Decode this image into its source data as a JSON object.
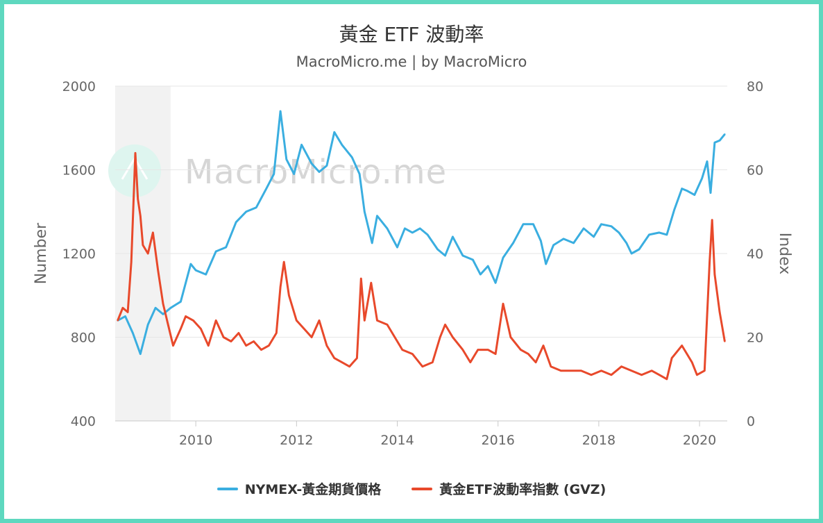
{
  "title": "黃金 ETF 波動率",
  "subtitle": "MacroMicro.me | by MacroMicro",
  "watermark": "MacroMicro.me",
  "colors": {
    "gold": "#3aaee0",
    "gvz": "#e8492b",
    "band": "#f2f2f2",
    "border": "#5ed8bf"
  },
  "chart_data": {
    "type": "line",
    "xlim": [
      2008.4,
      2020.55
    ],
    "x_ticks": [
      "2010",
      "2012",
      "2014",
      "2016",
      "2018",
      "2020"
    ],
    "y_left": {
      "label": "Number",
      "ylim": [
        400,
        2000
      ],
      "ticks": [
        "400",
        "800",
        "1200",
        "1600",
        "2000"
      ]
    },
    "y_right": {
      "label": "Index",
      "ylim": [
        0,
        80
      ],
      "ticks": [
        "0",
        "20",
        "40",
        "60",
        "80"
      ]
    },
    "shaded_period": [
      2008.4,
      2009.5
    ],
    "grid": true,
    "legend_position": "bottom",
    "series": [
      {
        "name": "NYMEX-黃金期貨價格",
        "axis": "left",
        "color": "#3aaee0",
        "points": [
          [
            2008.45,
            880
          ],
          [
            2008.6,
            900
          ],
          [
            2008.75,
            820
          ],
          [
            2008.9,
            720
          ],
          [
            2009.05,
            860
          ],
          [
            2009.2,
            940
          ],
          [
            2009.35,
            910
          ],
          [
            2009.5,
            940
          ],
          [
            2009.7,
            970
          ],
          [
            2009.9,
            1150
          ],
          [
            2010.0,
            1120
          ],
          [
            2010.2,
            1100
          ],
          [
            2010.4,
            1210
          ],
          [
            2010.6,
            1230
          ],
          [
            2010.8,
            1350
          ],
          [
            2011.0,
            1400
          ],
          [
            2011.2,
            1420
          ],
          [
            2011.4,
            1510
          ],
          [
            2011.55,
            1580
          ],
          [
            2011.68,
            1880
          ],
          [
            2011.8,
            1650
          ],
          [
            2011.95,
            1580
          ],
          [
            2012.1,
            1720
          ],
          [
            2012.3,
            1630
          ],
          [
            2012.45,
            1590
          ],
          [
            2012.6,
            1620
          ],
          [
            2012.75,
            1780
          ],
          [
            2012.9,
            1720
          ],
          [
            2013.1,
            1660
          ],
          [
            2013.25,
            1580
          ],
          [
            2013.35,
            1400
          ],
          [
            2013.5,
            1250
          ],
          [
            2013.6,
            1380
          ],
          [
            2013.8,
            1320
          ],
          [
            2014.0,
            1230
          ],
          [
            2014.15,
            1320
          ],
          [
            2014.3,
            1300
          ],
          [
            2014.45,
            1320
          ],
          [
            2014.6,
            1290
          ],
          [
            2014.8,
            1220
          ],
          [
            2014.95,
            1190
          ],
          [
            2015.1,
            1280
          ],
          [
            2015.3,
            1190
          ],
          [
            2015.5,
            1170
          ],
          [
            2015.65,
            1100
          ],
          [
            2015.8,
            1140
          ],
          [
            2015.95,
            1060
          ],
          [
            2016.1,
            1180
          ],
          [
            2016.3,
            1250
          ],
          [
            2016.5,
            1340
          ],
          [
            2016.7,
            1340
          ],
          [
            2016.85,
            1260
          ],
          [
            2016.95,
            1150
          ],
          [
            2017.1,
            1240
          ],
          [
            2017.3,
            1270
          ],
          [
            2017.5,
            1250
          ],
          [
            2017.7,
            1320
          ],
          [
            2017.9,
            1280
          ],
          [
            2018.05,
            1340
          ],
          [
            2018.25,
            1330
          ],
          [
            2018.4,
            1300
          ],
          [
            2018.55,
            1250
          ],
          [
            2018.65,
            1200
          ],
          [
            2018.8,
            1220
          ],
          [
            2019.0,
            1290
          ],
          [
            2019.2,
            1300
          ],
          [
            2019.35,
            1290
          ],
          [
            2019.5,
            1410
          ],
          [
            2019.65,
            1510
          ],
          [
            2019.75,
            1500
          ],
          [
            2019.9,
            1480
          ],
          [
            2020.05,
            1560
          ],
          [
            2020.15,
            1640
          ],
          [
            2020.22,
            1490
          ],
          [
            2020.3,
            1730
          ],
          [
            2020.4,
            1740
          ],
          [
            2020.5,
            1770
          ]
        ]
      },
      {
        "name": "黃金ETF波動率指數 (GVZ)",
        "axis": "right",
        "color": "#e8492b",
        "points": [
          [
            2008.45,
            24
          ],
          [
            2008.55,
            27
          ],
          [
            2008.65,
            26
          ],
          [
            2008.72,
            38
          ],
          [
            2008.8,
            64
          ],
          [
            2008.85,
            53
          ],
          [
            2008.9,
            49
          ],
          [
            2008.95,
            42
          ],
          [
            2009.05,
            40
          ],
          [
            2009.15,
            45
          ],
          [
            2009.25,
            36
          ],
          [
            2009.35,
            28
          ],
          [
            2009.45,
            23
          ],
          [
            2009.55,
            18
          ],
          [
            2009.7,
            22
          ],
          [
            2009.8,
            25
          ],
          [
            2009.95,
            24
          ],
          [
            2010.1,
            22
          ],
          [
            2010.25,
            18
          ],
          [
            2010.4,
            24
          ],
          [
            2010.55,
            20
          ],
          [
            2010.7,
            19
          ],
          [
            2010.85,
            21
          ],
          [
            2011.0,
            18
          ],
          [
            2011.15,
            19
          ],
          [
            2011.3,
            17
          ],
          [
            2011.45,
            18
          ],
          [
            2011.6,
            21
          ],
          [
            2011.68,
            32
          ],
          [
            2011.75,
            38
          ],
          [
            2011.85,
            30
          ],
          [
            2012.0,
            24
          ],
          [
            2012.15,
            22
          ],
          [
            2012.3,
            20
          ],
          [
            2012.45,
            24
          ],
          [
            2012.6,
            18
          ],
          [
            2012.75,
            15
          ],
          [
            2012.9,
            14
          ],
          [
            2013.05,
            13
          ],
          [
            2013.2,
            15
          ],
          [
            2013.28,
            34
          ],
          [
            2013.35,
            24
          ],
          [
            2013.48,
            33
          ],
          [
            2013.6,
            24
          ],
          [
            2013.8,
            23
          ],
          [
            2013.95,
            20
          ],
          [
            2014.1,
            17
          ],
          [
            2014.3,
            16
          ],
          [
            2014.5,
            13
          ],
          [
            2014.7,
            14
          ],
          [
            2014.85,
            20
          ],
          [
            2014.95,
            23
          ],
          [
            2015.1,
            20
          ],
          [
            2015.3,
            17
          ],
          [
            2015.45,
            14
          ],
          [
            2015.6,
            17
          ],
          [
            2015.8,
            17
          ],
          [
            2015.95,
            16
          ],
          [
            2016.1,
            28
          ],
          [
            2016.25,
            20
          ],
          [
            2016.45,
            17
          ],
          [
            2016.6,
            16
          ],
          [
            2016.75,
            14
          ],
          [
            2016.9,
            18
          ],
          [
            2017.05,
            13
          ],
          [
            2017.25,
            12
          ],
          [
            2017.45,
            12
          ],
          [
            2017.65,
            12
          ],
          [
            2017.85,
            11
          ],
          [
            2018.05,
            12
          ],
          [
            2018.25,
            11
          ],
          [
            2018.45,
            13
          ],
          [
            2018.65,
            12
          ],
          [
            2018.85,
            11
          ],
          [
            2019.05,
            12
          ],
          [
            2019.2,
            11
          ],
          [
            2019.35,
            10
          ],
          [
            2019.45,
            15
          ],
          [
            2019.65,
            18
          ],
          [
            2019.85,
            14
          ],
          [
            2019.95,
            11
          ],
          [
            2020.1,
            12
          ],
          [
            2020.2,
            38
          ],
          [
            2020.25,
            48
          ],
          [
            2020.3,
            35
          ],
          [
            2020.4,
            26
          ],
          [
            2020.5,
            19
          ]
        ]
      }
    ]
  }
}
